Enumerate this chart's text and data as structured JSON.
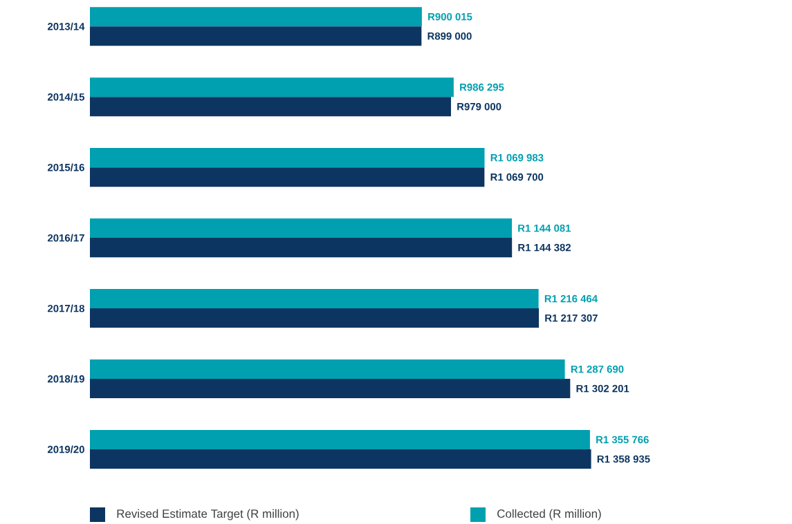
{
  "chart_data": {
    "type": "bar",
    "orientation": "horizontal",
    "categories": [
      "2013/14",
      "2014/15",
      "2015/16",
      "2016/17",
      "2017/18",
      "2018/19",
      "2019/20"
    ],
    "tick_labels": "y",
    "legend": "bottom",
    "series": [
      {
        "name": "Collected (R million)",
        "color": "#00a0b0",
        "values": [
          900015,
          986295,
          1069983,
          1144081,
          1216464,
          1287690,
          1355766
        ],
        "value_labels": [
          "R900 015",
          "R986 295",
          "R1 069 983",
          "R1 144 081",
          "R1 216 464",
          "R1 287 690",
          "R1 355 766"
        ]
      },
      {
        "name": "Revised Estimate Target (R million)",
        "color": "#0d3561",
        "values": [
          899000,
          979000,
          1069700,
          1144382,
          1217307,
          1302201,
          1358935
        ],
        "value_labels": [
          "R899 000",
          "R979 000",
          "R1 069 700",
          "R1 144 382",
          "R1 217 307",
          "R1 302 201",
          "R1 358 935"
        ]
      }
    ]
  }
}
